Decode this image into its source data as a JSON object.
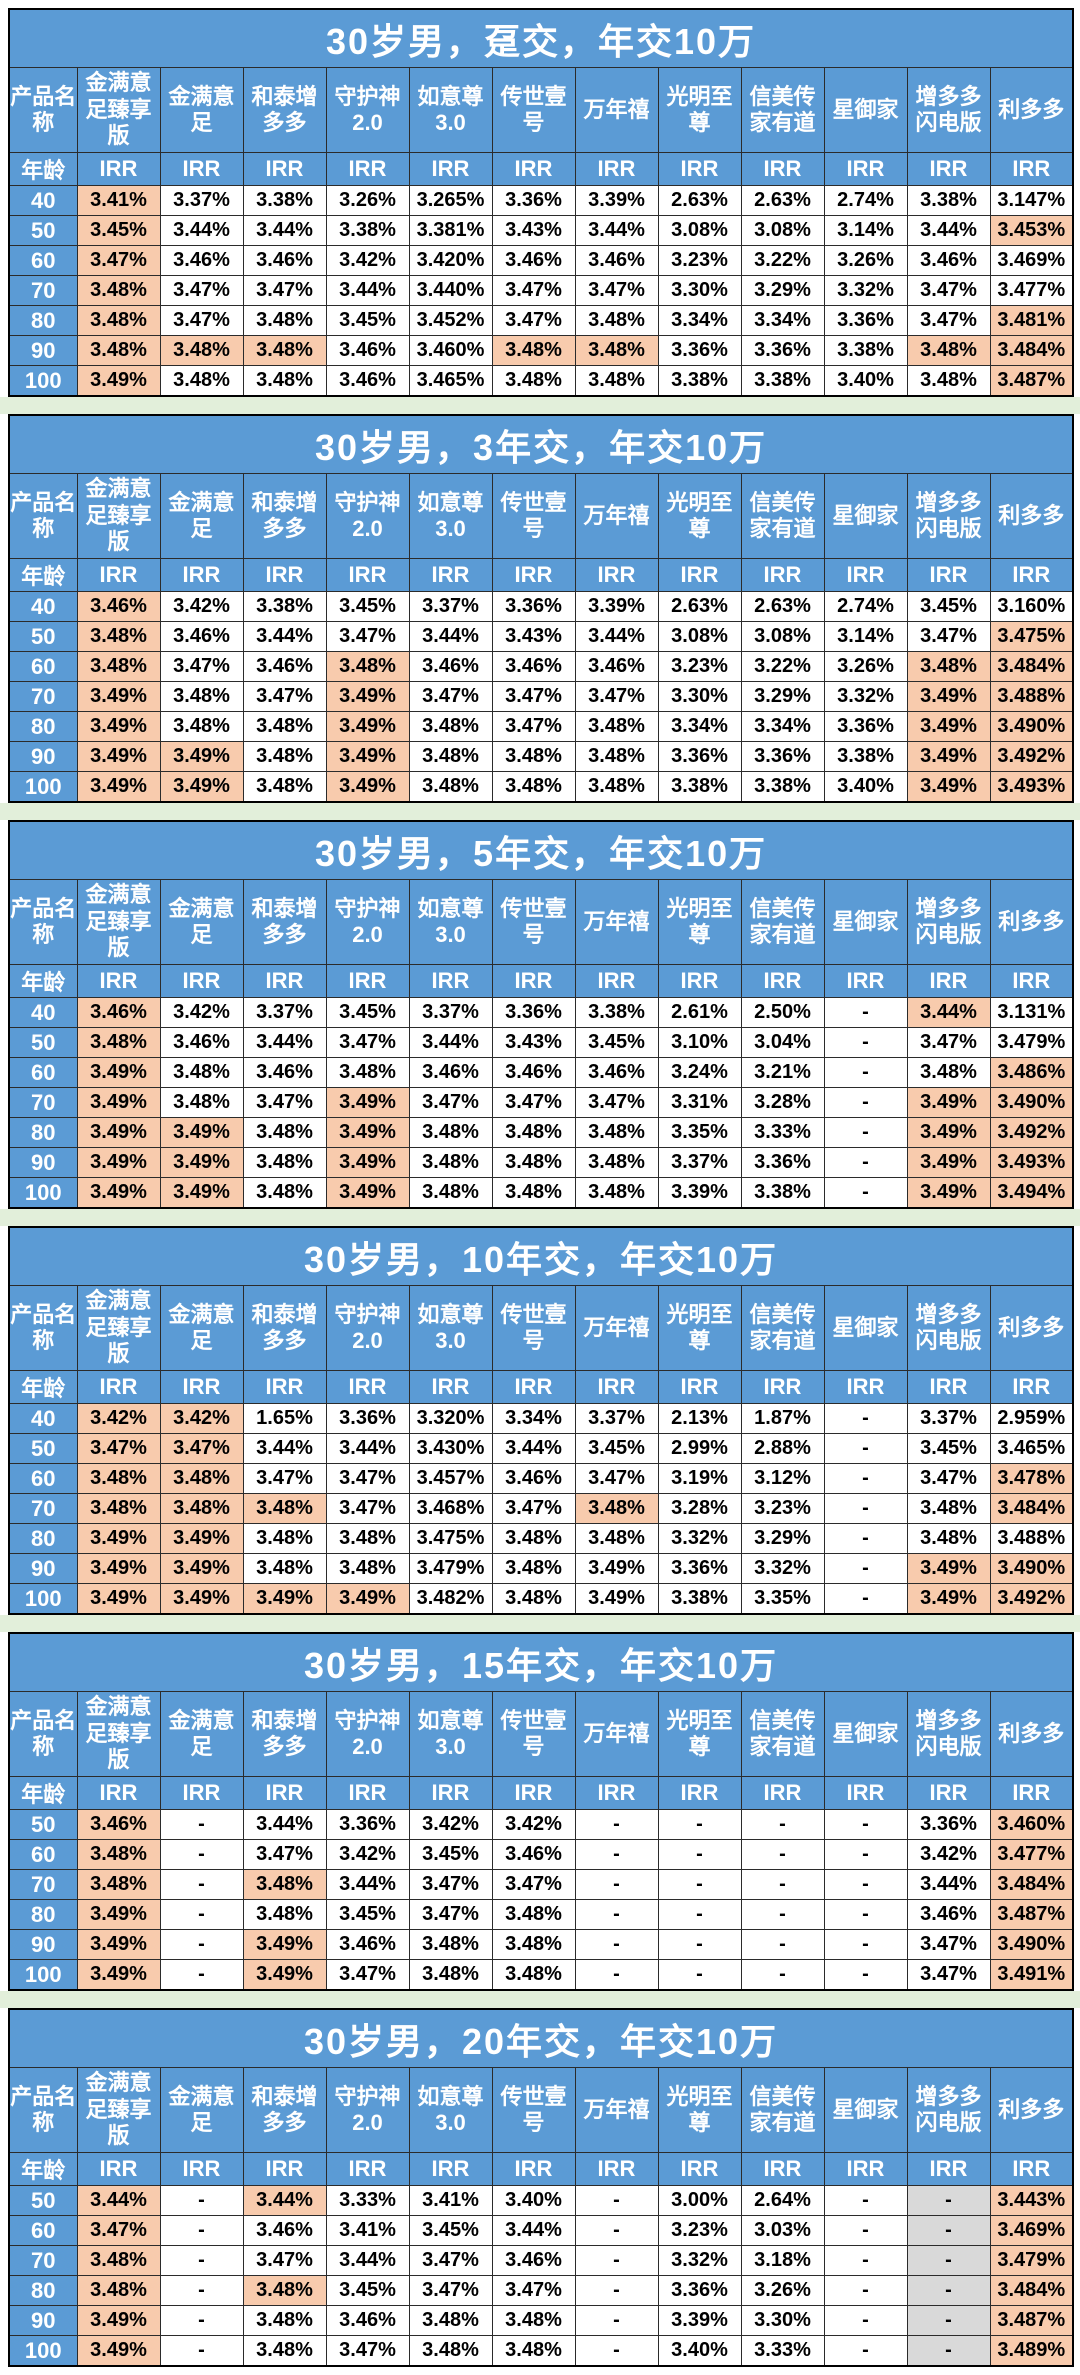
{
  "colors": {
    "header_blue": "#5b9bd5",
    "highlight_peach": "#f8cbad",
    "separator_green": "#e2efda",
    "unavailable_gray": "#d9d9d9",
    "grid_border": "#2b2b2b",
    "header_text": "#ffffff",
    "value_text": "#000000"
  },
  "labels": {
    "product_name": "产品名称",
    "age": "年龄",
    "irr": "IRR",
    "empty": "-"
  },
  "products": [
    "金满意足臻享版",
    "金满意足",
    "和泰增多多",
    "守护神2.0",
    "如意尊3.0",
    "传世壹号",
    "万年禧",
    "光明至尊",
    "信美传家有道",
    "星御家",
    "增多多闪电版",
    "利多多"
  ],
  "tables": [
    {
      "title": "30岁男，趸交，年交10万",
      "rows": [
        {
          "age": "40",
          "values": [
            "3.41%",
            "3.37%",
            "3.38%",
            "3.26%",
            "3.265%",
            "3.36%",
            "3.39%",
            "2.63%",
            "2.63%",
            "2.74%",
            "3.38%",
            "3.147%"
          ],
          "hl": [
            0
          ],
          "gray": []
        },
        {
          "age": "50",
          "values": [
            "3.45%",
            "3.44%",
            "3.44%",
            "3.38%",
            "3.381%",
            "3.43%",
            "3.44%",
            "3.08%",
            "3.08%",
            "3.14%",
            "3.44%",
            "3.453%"
          ],
          "hl": [
            0,
            11
          ],
          "gray": []
        },
        {
          "age": "60",
          "values": [
            "3.47%",
            "3.46%",
            "3.46%",
            "3.42%",
            "3.420%",
            "3.46%",
            "3.46%",
            "3.23%",
            "3.22%",
            "3.26%",
            "3.46%",
            "3.469%"
          ],
          "hl": [
            0
          ],
          "gray": []
        },
        {
          "age": "70",
          "values": [
            "3.48%",
            "3.47%",
            "3.47%",
            "3.44%",
            "3.440%",
            "3.47%",
            "3.47%",
            "3.30%",
            "3.29%",
            "3.32%",
            "3.47%",
            "3.477%"
          ],
          "hl": [
            0
          ],
          "gray": []
        },
        {
          "age": "80",
          "values": [
            "3.48%",
            "3.47%",
            "3.48%",
            "3.45%",
            "3.452%",
            "3.47%",
            "3.48%",
            "3.34%",
            "3.34%",
            "3.36%",
            "3.47%",
            "3.481%"
          ],
          "hl": [
            0,
            11
          ],
          "gray": []
        },
        {
          "age": "90",
          "values": [
            "3.48%",
            "3.48%",
            "3.48%",
            "3.46%",
            "3.460%",
            "3.48%",
            "3.48%",
            "3.36%",
            "3.36%",
            "3.38%",
            "3.48%",
            "3.484%"
          ],
          "hl": [
            0,
            1,
            2,
            5,
            6,
            10,
            11
          ],
          "gray": []
        },
        {
          "age": "100",
          "values": [
            "3.49%",
            "3.48%",
            "3.48%",
            "3.46%",
            "3.465%",
            "3.48%",
            "3.48%",
            "3.38%",
            "3.38%",
            "3.40%",
            "3.48%",
            "3.487%"
          ],
          "hl": [
            0,
            11
          ],
          "gray": []
        }
      ]
    },
    {
      "title": "30岁男，3年交，年交10万",
      "rows": [
        {
          "age": "40",
          "values": [
            "3.46%",
            "3.42%",
            "3.38%",
            "3.45%",
            "3.37%",
            "3.36%",
            "3.39%",
            "2.63%",
            "2.63%",
            "2.74%",
            "3.45%",
            "3.160%"
          ],
          "hl": [
            0
          ],
          "gray": []
        },
        {
          "age": "50",
          "values": [
            "3.48%",
            "3.46%",
            "3.44%",
            "3.47%",
            "3.44%",
            "3.43%",
            "3.44%",
            "3.08%",
            "3.08%",
            "3.14%",
            "3.47%",
            "3.475%"
          ],
          "hl": [
            0,
            11
          ],
          "gray": []
        },
        {
          "age": "60",
          "values": [
            "3.48%",
            "3.47%",
            "3.46%",
            "3.48%",
            "3.46%",
            "3.46%",
            "3.46%",
            "3.23%",
            "3.22%",
            "3.26%",
            "3.48%",
            "3.484%"
          ],
          "hl": [
            0,
            3,
            10,
            11
          ],
          "gray": []
        },
        {
          "age": "70",
          "values": [
            "3.49%",
            "3.48%",
            "3.47%",
            "3.49%",
            "3.47%",
            "3.47%",
            "3.47%",
            "3.30%",
            "3.29%",
            "3.32%",
            "3.49%",
            "3.488%"
          ],
          "hl": [
            0,
            3,
            10,
            11
          ],
          "gray": []
        },
        {
          "age": "80",
          "values": [
            "3.49%",
            "3.48%",
            "3.48%",
            "3.49%",
            "3.48%",
            "3.47%",
            "3.48%",
            "3.34%",
            "3.34%",
            "3.36%",
            "3.49%",
            "3.490%"
          ],
          "hl": [
            0,
            3,
            10,
            11
          ],
          "gray": []
        },
        {
          "age": "90",
          "values": [
            "3.49%",
            "3.49%",
            "3.48%",
            "3.49%",
            "3.48%",
            "3.48%",
            "3.48%",
            "3.36%",
            "3.36%",
            "3.38%",
            "3.49%",
            "3.492%"
          ],
          "hl": [
            0,
            1,
            3,
            10,
            11
          ],
          "gray": []
        },
        {
          "age": "100",
          "values": [
            "3.49%",
            "3.49%",
            "3.48%",
            "3.49%",
            "3.48%",
            "3.48%",
            "3.48%",
            "3.38%",
            "3.38%",
            "3.40%",
            "3.49%",
            "3.493%"
          ],
          "hl": [
            0,
            1,
            3,
            10,
            11
          ],
          "gray": []
        }
      ]
    },
    {
      "title": "30岁男，5年交，年交10万",
      "rows": [
        {
          "age": "40",
          "values": [
            "3.46%",
            "3.42%",
            "3.37%",
            "3.45%",
            "3.37%",
            "3.36%",
            "3.38%",
            "2.61%",
            "2.50%",
            "-",
            "3.44%",
            "3.131%"
          ],
          "hl": [
            0,
            10
          ],
          "gray": []
        },
        {
          "age": "50",
          "values": [
            "3.48%",
            "3.46%",
            "3.44%",
            "3.47%",
            "3.44%",
            "3.43%",
            "3.45%",
            "3.10%",
            "3.04%",
            "-",
            "3.47%",
            "3.479%"
          ],
          "hl": [
            0
          ],
          "gray": []
        },
        {
          "age": "60",
          "values": [
            "3.49%",
            "3.48%",
            "3.46%",
            "3.48%",
            "3.46%",
            "3.46%",
            "3.46%",
            "3.24%",
            "3.21%",
            "-",
            "3.48%",
            "3.486%"
          ],
          "hl": [
            0,
            11
          ],
          "gray": []
        },
        {
          "age": "70",
          "values": [
            "3.49%",
            "3.48%",
            "3.47%",
            "3.49%",
            "3.47%",
            "3.47%",
            "3.47%",
            "3.31%",
            "3.28%",
            "-",
            "3.49%",
            "3.490%"
          ],
          "hl": [
            0,
            3,
            10,
            11
          ],
          "gray": []
        },
        {
          "age": "80",
          "values": [
            "3.49%",
            "3.49%",
            "3.48%",
            "3.49%",
            "3.48%",
            "3.48%",
            "3.48%",
            "3.35%",
            "3.33%",
            "-",
            "3.49%",
            "3.492%"
          ],
          "hl": [
            0,
            1,
            3,
            10,
            11
          ],
          "gray": []
        },
        {
          "age": "90",
          "values": [
            "3.49%",
            "3.49%",
            "3.48%",
            "3.49%",
            "3.48%",
            "3.48%",
            "3.48%",
            "3.37%",
            "3.36%",
            "-",
            "3.49%",
            "3.493%"
          ],
          "hl": [
            0,
            1,
            3,
            10,
            11
          ],
          "gray": []
        },
        {
          "age": "100",
          "values": [
            "3.49%",
            "3.49%",
            "3.48%",
            "3.49%",
            "3.48%",
            "3.48%",
            "3.48%",
            "3.39%",
            "3.38%",
            "-",
            "3.49%",
            "3.494%"
          ],
          "hl": [
            0,
            1,
            3,
            10,
            11
          ],
          "gray": []
        }
      ]
    },
    {
      "title": "30岁男，10年交，年交10万",
      "rows": [
        {
          "age": "40",
          "values": [
            "3.42%",
            "3.42%",
            "1.65%",
            "3.36%",
            "3.320%",
            "3.34%",
            "3.37%",
            "2.13%",
            "1.87%",
            "-",
            "3.37%",
            "2.959%"
          ],
          "hl": [
            0,
            1
          ],
          "gray": []
        },
        {
          "age": "50",
          "values": [
            "3.47%",
            "3.47%",
            "3.44%",
            "3.44%",
            "3.430%",
            "3.44%",
            "3.45%",
            "2.99%",
            "2.88%",
            "-",
            "3.45%",
            "3.465%"
          ],
          "hl": [
            0,
            1
          ],
          "gray": []
        },
        {
          "age": "60",
          "values": [
            "3.48%",
            "3.48%",
            "3.47%",
            "3.47%",
            "3.457%",
            "3.46%",
            "3.47%",
            "3.19%",
            "3.12%",
            "-",
            "3.47%",
            "3.478%"
          ],
          "hl": [
            0,
            1,
            11
          ],
          "gray": []
        },
        {
          "age": "70",
          "values": [
            "3.48%",
            "3.48%",
            "3.48%",
            "3.47%",
            "3.468%",
            "3.47%",
            "3.48%",
            "3.28%",
            "3.23%",
            "-",
            "3.48%",
            "3.484%"
          ],
          "hl": [
            0,
            1,
            2,
            6,
            11
          ],
          "gray": []
        },
        {
          "age": "80",
          "values": [
            "3.49%",
            "3.49%",
            "3.48%",
            "3.48%",
            "3.475%",
            "3.48%",
            "3.48%",
            "3.32%",
            "3.29%",
            "-",
            "3.48%",
            "3.488%"
          ],
          "hl": [
            0,
            1
          ],
          "gray": []
        },
        {
          "age": "90",
          "values": [
            "3.49%",
            "3.49%",
            "3.48%",
            "3.48%",
            "3.479%",
            "3.48%",
            "3.49%",
            "3.36%",
            "3.32%",
            "-",
            "3.49%",
            "3.490%"
          ],
          "hl": [
            0,
            1,
            10,
            11
          ],
          "gray": []
        },
        {
          "age": "100",
          "values": [
            "3.49%",
            "3.49%",
            "3.49%",
            "3.49%",
            "3.482%",
            "3.48%",
            "3.49%",
            "3.38%",
            "3.35%",
            "-",
            "3.49%",
            "3.492%"
          ],
          "hl": [
            0,
            1,
            2,
            3,
            10,
            11
          ],
          "gray": []
        }
      ]
    },
    {
      "title": "30岁男，15年交，年交10万",
      "rows": [
        {
          "age": "50",
          "values": [
            "3.46%",
            "-",
            "3.44%",
            "3.36%",
            "3.42%",
            "3.42%",
            "-",
            "-",
            "-",
            "-",
            "3.36%",
            "3.460%"
          ],
          "hl": [
            0,
            11
          ],
          "gray": []
        },
        {
          "age": "60",
          "values": [
            "3.48%",
            "-",
            "3.47%",
            "3.42%",
            "3.45%",
            "3.46%",
            "-",
            "-",
            "-",
            "-",
            "3.42%",
            "3.477%"
          ],
          "hl": [
            0,
            11
          ],
          "gray": []
        },
        {
          "age": "70",
          "values": [
            "3.48%",
            "-",
            "3.48%",
            "3.44%",
            "3.47%",
            "3.47%",
            "-",
            "-",
            "-",
            "-",
            "3.44%",
            "3.484%"
          ],
          "hl": [
            0,
            2,
            11
          ],
          "gray": []
        },
        {
          "age": "80",
          "values": [
            "3.49%",
            "-",
            "3.48%",
            "3.45%",
            "3.47%",
            "3.48%",
            "-",
            "-",
            "-",
            "-",
            "3.46%",
            "3.487%"
          ],
          "hl": [
            0,
            11
          ],
          "gray": []
        },
        {
          "age": "90",
          "values": [
            "3.49%",
            "-",
            "3.49%",
            "3.46%",
            "3.48%",
            "3.48%",
            "-",
            "-",
            "-",
            "-",
            "3.47%",
            "3.490%"
          ],
          "hl": [
            0,
            2,
            11
          ],
          "gray": []
        },
        {
          "age": "100",
          "values": [
            "3.49%",
            "-",
            "3.49%",
            "3.47%",
            "3.48%",
            "3.48%",
            "-",
            "-",
            "-",
            "-",
            "3.47%",
            "3.491%"
          ],
          "hl": [
            0,
            2,
            11
          ],
          "gray": []
        }
      ]
    },
    {
      "title": "30岁男，20年交，年交10万",
      "rows": [
        {
          "age": "50",
          "values": [
            "3.44%",
            "-",
            "3.44%",
            "3.33%",
            "3.41%",
            "3.40%",
            "-",
            "3.00%",
            "2.64%",
            "-",
            "-",
            "3.443%"
          ],
          "hl": [
            0,
            2,
            11
          ],
          "gray": [
            10
          ]
        },
        {
          "age": "60",
          "values": [
            "3.47%",
            "-",
            "3.46%",
            "3.41%",
            "3.45%",
            "3.44%",
            "-",
            "3.23%",
            "3.03%",
            "-",
            "-",
            "3.469%"
          ],
          "hl": [
            0,
            11
          ],
          "gray": [
            10
          ]
        },
        {
          "age": "70",
          "values": [
            "3.48%",
            "-",
            "3.47%",
            "3.44%",
            "3.47%",
            "3.46%",
            "-",
            "3.32%",
            "3.18%",
            "-",
            "-",
            "3.479%"
          ],
          "hl": [
            0,
            11
          ],
          "gray": [
            10
          ]
        },
        {
          "age": "80",
          "values": [
            "3.48%",
            "-",
            "3.48%",
            "3.45%",
            "3.47%",
            "3.47%",
            "-",
            "3.36%",
            "3.26%",
            "-",
            "-",
            "3.484%"
          ],
          "hl": [
            0,
            2,
            11
          ],
          "gray": [
            10
          ]
        },
        {
          "age": "90",
          "values": [
            "3.49%",
            "-",
            "3.48%",
            "3.46%",
            "3.48%",
            "3.48%",
            "-",
            "3.39%",
            "3.30%",
            "-",
            "-",
            "3.487%"
          ],
          "hl": [
            0,
            11
          ],
          "gray": [
            10
          ]
        },
        {
          "age": "100",
          "values": [
            "3.49%",
            "-",
            "3.48%",
            "3.47%",
            "3.48%",
            "3.48%",
            "-",
            "3.40%",
            "3.33%",
            "-",
            "-",
            "3.489%"
          ],
          "hl": [
            0,
            11
          ],
          "gray": [
            10
          ]
        }
      ]
    }
  ]
}
